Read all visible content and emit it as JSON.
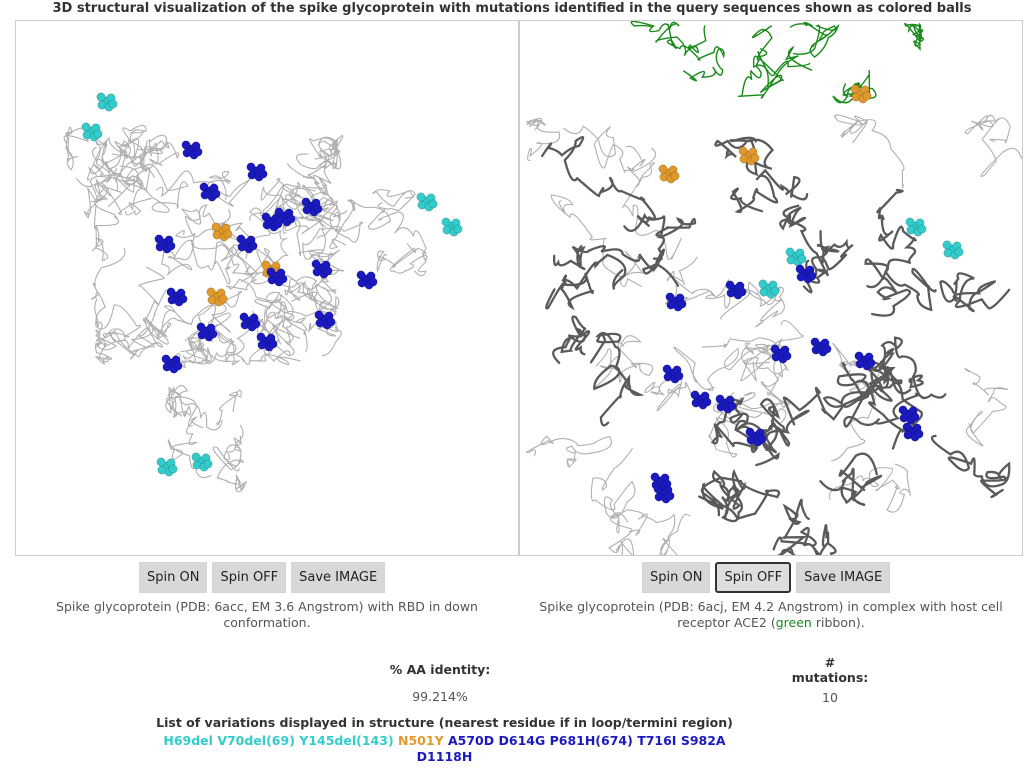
{
  "page": {
    "title": "3D structural visualization of the spike glycoprotein with mutations identified in the query sequences shown as colored balls"
  },
  "colors": {
    "deletion": "#33cccc",
    "rbd": "#e09a2b",
    "other": "#1a1ac0",
    "ace2_ribbon": "#1a8a1a",
    "backbone_light": "#b0b0b0",
    "backbone_dark": "#5a5a5a"
  },
  "viewers": {
    "left": {
      "spin_on_label": "Spin ON",
      "spin_off_label": "Spin OFF",
      "save_label": "Save IMAGE",
      "caption": "Spike glycoprotein (PDB: 6acc, EM 3.6 Angstrom) with RBD in down conformation."
    },
    "right": {
      "spin_on_label": "Spin ON",
      "spin_off_label": "Spin OFF",
      "save_label": "Save IMAGE",
      "caption_pre": "Spike glycoprotein (PDB: 6acj, EM 4.2 Angstrom) in complex with host cell receptor ACE2 (",
      "caption_green": "green",
      "caption_post": " ribbon)."
    }
  },
  "stats": {
    "identity_label": "% AA identity:",
    "identity_value": "99.214%",
    "mutations_label_line1": "#",
    "mutations_label_line2": "mutations:",
    "mutations_value": "10"
  },
  "variations": {
    "title": "List of variations displayed in structure (nearest residue if in loop/termini region)",
    "items": [
      {
        "text": "H69del",
        "type": "deletion"
      },
      {
        "text": "V70del(69)",
        "type": "deletion"
      },
      {
        "text": "Y145del(143)",
        "type": "deletion"
      },
      {
        "text": "N501Y",
        "type": "rbd"
      },
      {
        "text": "A570D",
        "type": "other"
      },
      {
        "text": "D614G",
        "type": "other"
      },
      {
        "text": "P681H(674)",
        "type": "other"
      },
      {
        "text": "T716I",
        "type": "other"
      },
      {
        "text": "S982A",
        "type": "other"
      },
      {
        "text": "D1118H",
        "type": "other"
      }
    ]
  }
}
